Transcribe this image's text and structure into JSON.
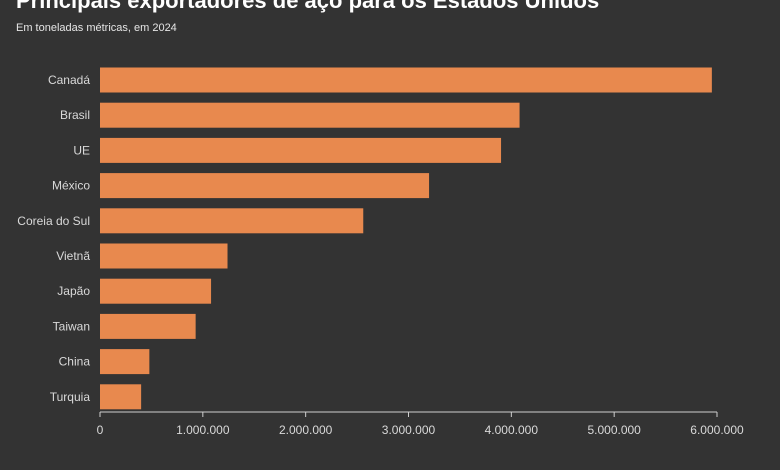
{
  "title": "Principais exportadores de aço para os Estados Unidos",
  "subtitle": "Em toneladas métricas, em 2024",
  "colors": {
    "background": "#333333",
    "bar": "#E8894E",
    "axis": "#cfcfcf",
    "text": "#d9d9d9"
  },
  "chart_data": {
    "type": "bar",
    "orientation": "horizontal",
    "title": "Principais exportadores de aço para os Estados Unidos",
    "subtitle": "Em toneladas métricas, em 2024",
    "categories": [
      "Canadá",
      "Brasil",
      "UE",
      "México",
      "Coreia do Sul",
      "Vietnã",
      "Japão",
      "Taiwan",
      "China",
      "Turquia"
    ],
    "values": [
      5950000,
      4080000,
      3900000,
      3200000,
      2560000,
      1240000,
      1080000,
      930000,
      480000,
      400000
    ],
    "xlim": [
      0,
      6000000
    ],
    "xticks": [
      0,
      1000000,
      2000000,
      3000000,
      4000000,
      5000000,
      6000000
    ],
    "xtick_labels": [
      "0",
      "1.000.000",
      "2.000.000",
      "3.000.000",
      "4.000.000",
      "5.000.000",
      "6.000.000"
    ],
    "xlabel": "",
    "ylabel": "",
    "grid": false,
    "legend": "none"
  }
}
